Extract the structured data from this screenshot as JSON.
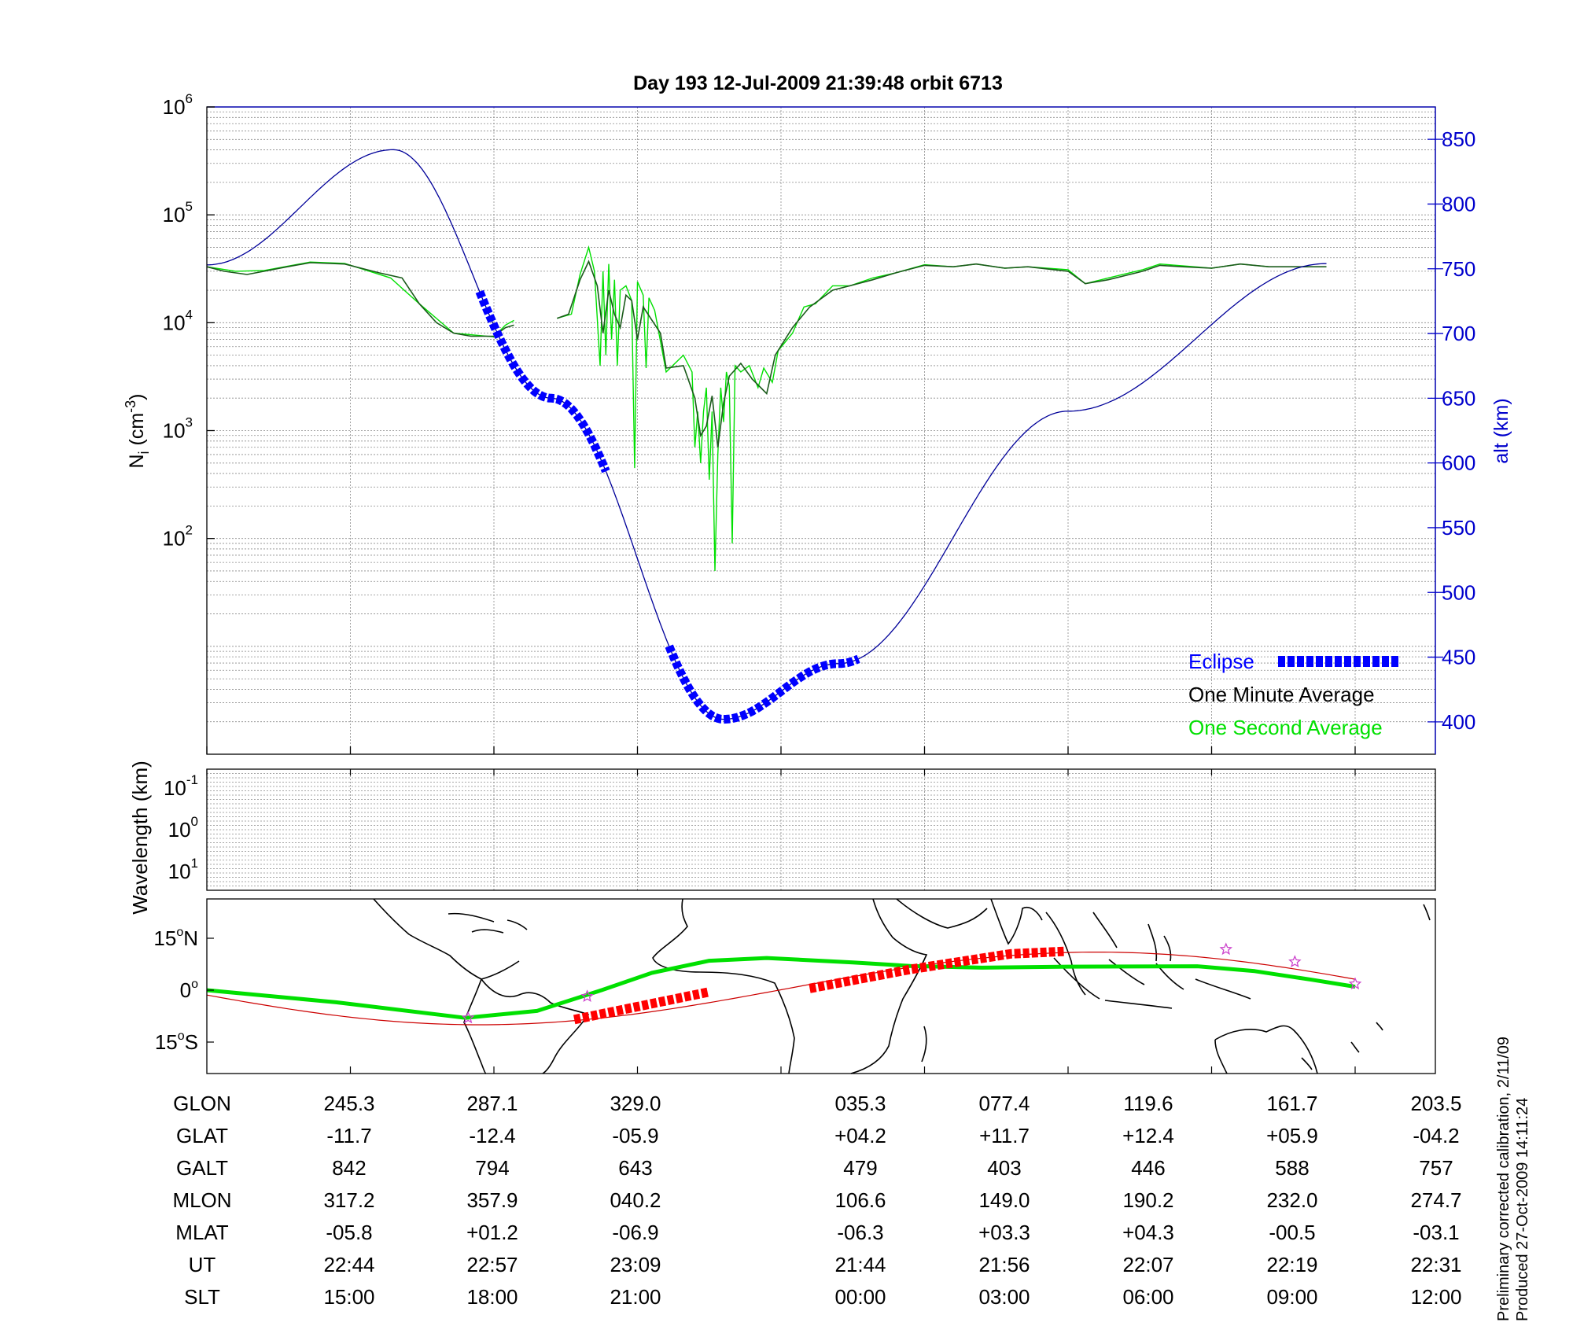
{
  "title": "Day 193  12-Jul-2009 21:39:48   orbit 6713",
  "chart_data": [
    {
      "type": "line",
      "panel": "ion density and altitude",
      "ylabel": "N",
      "ylabel_sub": "i",
      "ylabel_unit_base": " (cm",
      "ylabel_unit_exp": "-3",
      "ylabel_unit_close": ")",
      "y_scale": "log",
      "ylim": [
        1,
        1000000
      ],
      "y_ticks": [
        {
          "base": "10",
          "exp": "2",
          "value": 100
        },
        {
          "base": "10",
          "exp": "3",
          "value": 1000
        },
        {
          "base": "10",
          "exp": "4",
          "value": 10000
        },
        {
          "base": "10",
          "exp": "5",
          "value": 100000
        },
        {
          "base": "10",
          "exp": "6",
          "value": 1000000
        }
      ],
      "y2label": "alt (km)",
      "y2lim": [
        375,
        875
      ],
      "y2_ticks": [
        "400",
        "450",
        "500",
        "550",
        "600",
        "650",
        "700",
        "750",
        "800",
        "850"
      ],
      "grid": true,
      "legend_position": "bottom-right",
      "legend": [
        {
          "label": "Eclipse",
          "color": "#0000ff",
          "style": "thick-dashed"
        },
        {
          "label": "One Minute Average",
          "color": "#000000",
          "style": "text"
        },
        {
          "label": "One Second Average",
          "color": "#00e000",
          "style": "text"
        }
      ],
      "series": [
        {
          "name": "One Minute Average",
          "color": "#1a5a1a",
          "segments": [
            [
              [
                0,
                33000
              ],
              [
                0.03,
                30000
              ],
              [
                0.07,
                28000
              ],
              [
                0.1,
                30000
              ],
              [
                0.14,
                33000
              ],
              [
                0.18,
                36000
              ],
              [
                0.24,
                35000
              ],
              [
                0.3,
                29000
              ],
              [
                0.34,
                26000
              ],
              [
                0.37,
                15000
              ],
              [
                0.4,
                10000
              ],
              [
                0.43,
                8000
              ],
              [
                0.46,
                7500
              ],
              [
                0.5,
                7500
              ],
              [
                0.52,
                9000
              ],
              [
                0.535,
                9500
              ]
            ],
            [
              [
                0.61,
                11000
              ],
              [
                0.63,
                12000
              ],
              [
                0.65,
                25000
              ],
              [
                0.665,
                37000
              ],
              [
                0.68,
                22000
              ],
              [
                0.69,
                8000
              ],
              [
                0.7,
                20000
              ],
              [
                0.71,
                12000
              ],
              [
                0.72,
                9000
              ],
              [
                0.73,
                18000
              ],
              [
                0.74,
                16000
              ],
              [
                0.75,
                7000
              ],
              [
                0.76,
                14000
              ],
              [
                0.79,
                8000
              ],
              [
                0.8,
                3800
              ],
              [
                0.83,
                4000
              ],
              [
                0.85,
                2000
              ],
              [
                0.86,
                900
              ],
              [
                0.87,
                1100
              ],
              [
                0.88,
                2100
              ],
              [
                0.89,
                700
              ],
              [
                0.9,
                1800
              ],
              [
                0.91,
                3200
              ],
              [
                0.93,
                4200
              ],
              [
                0.95,
                3000
              ],
              [
                0.975,
                2200
              ],
              [
                0.99,
                5000
              ],
              [
                1.02,
                9000
              ],
              [
                1.05,
                14000
              ],
              [
                1.09,
                20000
              ],
              [
                1.12,
                22000
              ],
              [
                1.16,
                25000
              ],
              [
                1.2,
                29000
              ],
              [
                1.25,
                34000
              ],
              [
                1.3,
                33000
              ],
              [
                1.34,
                35000
              ],
              [
                1.39,
                32000
              ],
              [
                1.43,
                33000
              ],
              [
                1.5,
                30000
              ],
              [
                1.53,
                23000
              ],
              [
                1.57,
                25000
              ],
              [
                1.63,
                30000
              ],
              [
                1.66,
                34000
              ],
              [
                1.7,
                33000
              ],
              [
                1.75,
                32000
              ],
              [
                1.8,
                35000
              ],
              [
                1.85,
                33000
              ],
              [
                1.9,
                33000
              ],
              [
                1.95,
                33000
              ]
            ]
          ]
        },
        {
          "name": "One Second Average",
          "color": "#00e000",
          "segments": [
            [
              [
                0,
                33000
              ],
              [
                0.05,
                30000
              ],
              [
                0.1,
                30500
              ],
              [
                0.18,
                36500
              ],
              [
                0.24,
                35500
              ],
              [
                0.32,
                26000
              ],
              [
                0.37,
                15000
              ],
              [
                0.43,
                8000
              ],
              [
                0.5,
                7400
              ],
              [
                0.52,
                9500
              ],
              [
                0.535,
                10500
              ]
            ],
            [
              [
                0.61,
                11000
              ],
              [
                0.635,
                12000
              ],
              [
                0.65,
                28000
              ],
              [
                0.665,
                50000
              ],
              [
                0.675,
                30000
              ],
              [
                0.685,
                4000
              ],
              [
                0.69,
                30000
              ],
              [
                0.695,
                5000
              ],
              [
                0.7,
                35000
              ],
              [
                0.705,
                7000
              ],
              [
                0.71,
                25000
              ],
              [
                0.715,
                4000
              ],
              [
                0.72,
                20000
              ],
              [
                0.73,
                22000
              ],
              [
                0.74,
                16000
              ],
              [
                0.745,
                450
              ],
              [
                0.75,
                24000
              ],
              [
                0.76,
                18000
              ],
              [
                0.765,
                3800
              ],
              [
                0.77,
                17000
              ],
              [
                0.78,
                13000
              ],
              [
                0.8,
                3500
              ],
              [
                0.83,
                5000
              ],
              [
                0.845,
                3500
              ],
              [
                0.85,
                700
              ],
              [
                0.855,
                1500
              ],
              [
                0.86,
                500
              ],
              [
                0.865,
                1500
              ],
              [
                0.87,
                2500
              ],
              [
                0.875,
                350
              ],
              [
                0.88,
                1500
              ],
              [
                0.885,
                50
              ],
              [
                0.89,
                600
              ],
              [
                0.895,
                2500
              ],
              [
                0.9,
                1200
              ],
              [
                0.905,
                3500
              ],
              [
                0.91,
                2600
              ],
              [
                0.915,
                90
              ],
              [
                0.92,
                4000
              ],
              [
                0.93,
                3500
              ],
              [
                0.945,
                4000
              ],
              [
                0.96,
                2500
              ],
              [
                0.97,
                3800
              ],
              [
                0.985,
                2800
              ],
              [
                0.995,
                5500
              ],
              [
                1.02,
                8000
              ],
              [
                1.04,
                14000
              ],
              [
                1.06,
                15000
              ],
              [
                1.09,
                22000
              ],
              [
                1.12,
                22000
              ],
              [
                1.16,
                26000
              ],
              [
                1.2,
                29000
              ],
              [
                1.25,
                34500
              ],
              [
                1.3,
                33000
              ],
              [
                1.34,
                35000
              ],
              [
                1.39,
                32000
              ],
              [
                1.43,
                33000
              ],
              [
                1.5,
                31000
              ],
              [
                1.53,
                23000
              ],
              [
                1.57,
                26000
              ],
              [
                1.63,
                31000
              ],
              [
                1.66,
                35000
              ],
              [
                1.75,
                32000
              ],
              [
                1.8,
                35000
              ],
              [
                1.85,
                33000
              ],
              [
                1.95,
                33000
              ]
            ]
          ]
        },
        {
          "name": "alt (km)",
          "color": "#000099",
          "axis": "right",
          "function": "orbit-altitude",
          "knots": [
            [
              -0.4,
              842
            ],
            [
              0,
              753
            ],
            [
              0.325,
              842
            ],
            [
              0.6,
              650
            ],
            [
              0.9,
              402
            ],
            [
              1.1,
              445
            ],
            [
              1.5,
              640
            ],
            [
              1.95,
              754
            ]
          ]
        },
        {
          "name": "Eclipse",
          "color": "#0000ff",
          "axis": "right",
          "segments": [
            [
              0.475,
              0.695
            ],
            [
              0.805,
              1.135
            ]
          ]
        }
      ]
    },
    {
      "type": "heatmap",
      "panel": "wavelength",
      "ylabel": "Wavelength (km)",
      "y_scale": "log",
      "y_ticks": [
        {
          "base": "10",
          "exp": "-1"
        },
        {
          "base": "10",
          "exp": "0"
        },
        {
          "base": "10",
          "exp": "1"
        }
      ],
      "values": []
    },
    {
      "type": "scatter",
      "panel": "ground track map",
      "y_ticks": [
        {
          "num": "15",
          "hemi": "N"
        },
        {
          "num": "0",
          "hemi": ""
        },
        {
          "num": "15",
          "hemi": "S"
        }
      ],
      "series": [
        {
          "name": "satellite track",
          "color": "#00e000"
        },
        {
          "name": "magnetic equator",
          "color": "#cc0000"
        },
        {
          "name": "eclipse on track",
          "color": "#ff0000"
        }
      ],
      "markers": {
        "color": "#cc44cc",
        "shape": "star"
      }
    }
  ],
  "table": {
    "row_labels": [
      "GLON",
      "GLAT",
      "GALT",
      "MLON",
      "MLAT",
      "UT",
      "SLT"
    ],
    "columns": [
      [
        "245.3",
        "-11.7",
        "842",
        "317.2",
        "-05.8",
        "22:44",
        "15:00"
      ],
      [
        "287.1",
        "-12.4",
        "794",
        "357.9",
        "+01.2",
        "22:57",
        "18:00"
      ],
      [
        "329.0",
        "-05.9",
        "643",
        "040.2",
        "-06.9",
        "23:09",
        "21:00"
      ],
      [
        "035.3",
        "+04.2",
        "479",
        "106.6",
        "-06.3",
        "21:44",
        "00:00"
      ],
      [
        "077.4",
        "+11.7",
        "403",
        "149.0",
        "+03.3",
        "21:56",
        "03:00"
      ],
      [
        "119.6",
        "+12.4",
        "446",
        "190.2",
        "+04.3",
        "22:07",
        "06:00"
      ],
      [
        "161.7",
        "+05.9",
        "588",
        "232.0",
        "-00.5",
        "22:19",
        "09:00"
      ],
      [
        "203.5",
        "-04.2",
        "757",
        "274.7",
        "-03.1",
        "22:31",
        "12:00"
      ]
    ]
  },
  "side_notes": [
    "Preliminary corrected calibration, 2/11/09",
    "Produced 27-Oct-2009 14:11:24"
  ]
}
